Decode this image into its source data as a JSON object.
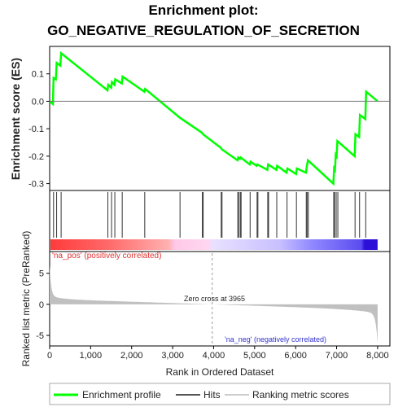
{
  "title_line1": "Enrichment plot:",
  "title_line2": "GO_NEGATIVE_REGULATION_OF_SECRETION",
  "chart_data": {
    "type": "line",
    "panels": {
      "enrichment": {
        "ylabel": "Enrichment score (ES)",
        "yticks": [
          0.1,
          0.0,
          -0.1,
          -0.2,
          -0.3
        ],
        "ytick_labels": [
          "0.1",
          "0.0",
          "-0.1",
          "-0.2",
          "-0.3"
        ],
        "ylim": [
          -0.325,
          0.2
        ],
        "series_name": "Enrichment profile",
        "series_color": "#00ff00",
        "points": [
          [
            0,
            0.0
          ],
          [
            80,
            -0.01
          ],
          [
            95,
            0.085
          ],
          [
            150,
            0.08
          ],
          [
            170,
            0.14
          ],
          [
            260,
            0.13
          ],
          [
            280,
            0.175
          ],
          [
            1410,
            0.04
          ],
          [
            1430,
            0.06
          ],
          [
            1500,
            0.05
          ],
          [
            1520,
            0.07
          ],
          [
            1580,
            0.06
          ],
          [
            1600,
            0.08
          ],
          [
            1760,
            0.065
          ],
          [
            1780,
            0.09
          ],
          [
            2310,
            0.035
          ],
          [
            2330,
            0.045
          ],
          [
            3180,
            -0.06
          ],
          [
            3720,
            -0.115
          ],
          [
            3740,
            -0.12
          ],
          [
            4180,
            -0.17
          ],
          [
            4200,
            -0.175
          ],
          [
            4580,
            -0.215
          ],
          [
            4600,
            -0.205
          ],
          [
            4640,
            -0.21
          ],
          [
            4660,
            -0.205
          ],
          [
            4880,
            -0.23
          ],
          [
            4900,
            -0.22
          ],
          [
            5050,
            -0.235
          ],
          [
            5070,
            -0.23
          ],
          [
            5310,
            -0.25
          ],
          [
            5330,
            -0.23
          ],
          [
            5530,
            -0.25
          ],
          [
            5550,
            -0.235
          ],
          [
            5780,
            -0.26
          ],
          [
            5800,
            -0.245
          ],
          [
            6010,
            -0.265
          ],
          [
            6030,
            -0.245
          ],
          [
            6250,
            -0.26
          ],
          [
            6270,
            -0.24
          ],
          [
            6300,
            -0.215
          ],
          [
            6920,
            -0.3
          ],
          [
            6940,
            -0.245
          ],
          [
            6960,
            -0.25
          ],
          [
            6980,
            -0.195
          ],
          [
            7000,
            -0.2
          ],
          [
            7020,
            -0.145
          ],
          [
            7440,
            -0.2
          ],
          [
            7460,
            -0.12
          ],
          [
            7550,
            -0.13
          ],
          [
            7570,
            -0.05
          ],
          [
            7700,
            -0.065
          ],
          [
            7720,
            0.035
          ],
          [
            8000,
            0.0
          ]
        ]
      },
      "hits": {
        "positions": [
          95,
          170,
          280,
          1420,
          1510,
          1590,
          1770,
          2320,
          3180,
          3725,
          3745,
          4185,
          4205,
          4590,
          4610,
          4650,
          4670,
          4890,
          5060,
          5080,
          5320,
          5340,
          5540,
          5790,
          6020,
          6260,
          6280,
          6310,
          6930,
          6950,
          6990,
          7030,
          7450,
          7560,
          7710
        ]
      },
      "ranked_metric": {
        "ylabel": "Ranked list metric (PreRanked)",
        "yticks": [
          5,
          0,
          -5
        ],
        "ytick_labels": [
          "5",
          "0",
          "-5"
        ],
        "ylim": [
          -6.7,
          8.5
        ],
        "zero_cross_label": "Zero cross at 3965",
        "zero_cross": 3965,
        "pos_label": "'na_pos' (positively correlated)",
        "neg_label": "'na_neg' (negatively correlated)"
      }
    },
    "xlabel": "Rank in Ordered Dataset",
    "xticks": [
      0,
      1000,
      2000,
      3000,
      4000,
      5000,
      6000,
      7000,
      8000
    ],
    "xtick_labels": [
      "0",
      "1,000",
      "2,000",
      "3,000",
      "4,000",
      "5,000",
      "6,000",
      "7,000",
      "8,000"
    ],
    "xlim": [
      0,
      8300
    ],
    "n_genes": 8000,
    "legend": {
      "placement": "bottom",
      "items": [
        {
          "label": "Enrichment profile",
          "color": "#00ff00"
        },
        {
          "label": "Hits",
          "color": "#555555"
        },
        {
          "label": "Ranking metric scores",
          "color": "#cccccc"
        }
      ]
    }
  }
}
